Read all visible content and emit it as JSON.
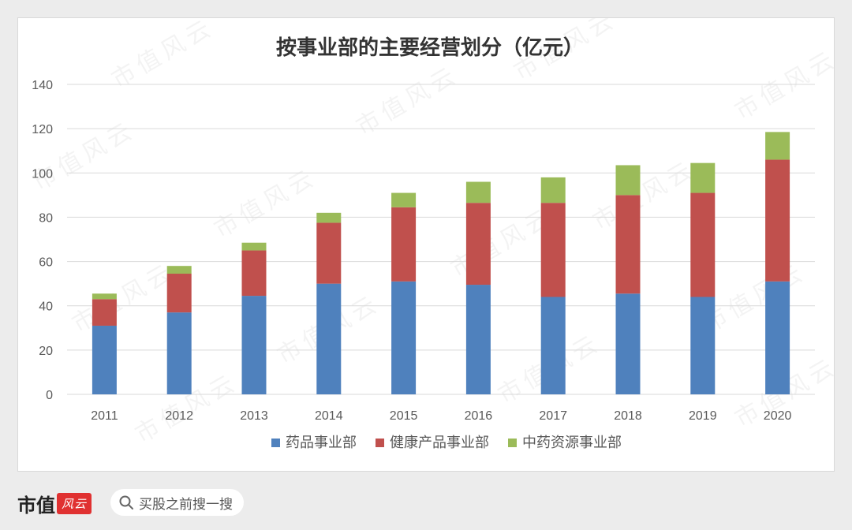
{
  "chart_data": {
    "type": "bar",
    "stacked": true,
    "title": "按事业部的主要经营划分（亿元）",
    "categories": [
      "2011",
      "2012",
      "2013",
      "2014",
      "2015",
      "2016",
      "2017",
      "2018",
      "2019",
      "2020"
    ],
    "series": [
      {
        "name": "药品事业部",
        "color": "#4f81bd",
        "values": [
          31,
          37,
          44.5,
          50,
          51,
          49.5,
          44,
          45.5,
          44,
          51
        ]
      },
      {
        "name": "健康产品事业部",
        "color": "#c0504d",
        "values": [
          12,
          17.5,
          20.5,
          27.5,
          33.5,
          37,
          42.5,
          44.5,
          47,
          55
        ]
      },
      {
        "name": "中药资源事业部",
        "color": "#9bbb59",
        "values": [
          2.5,
          3.5,
          3.5,
          4.5,
          6.5,
          9.5,
          11.5,
          13.5,
          13.5,
          12.5
        ]
      }
    ],
    "ylim": [
      0,
      140
    ],
    "yticks": [
      0,
      20,
      40,
      60,
      80,
      100,
      120,
      140
    ],
    "grid": true,
    "legend": "bottom"
  },
  "watermark": {
    "text": "市值风云"
  },
  "footer": {
    "brand": "市值",
    "logo": "风云",
    "search_icon": "search-icon",
    "search_text": "买股之前搜一搜"
  }
}
